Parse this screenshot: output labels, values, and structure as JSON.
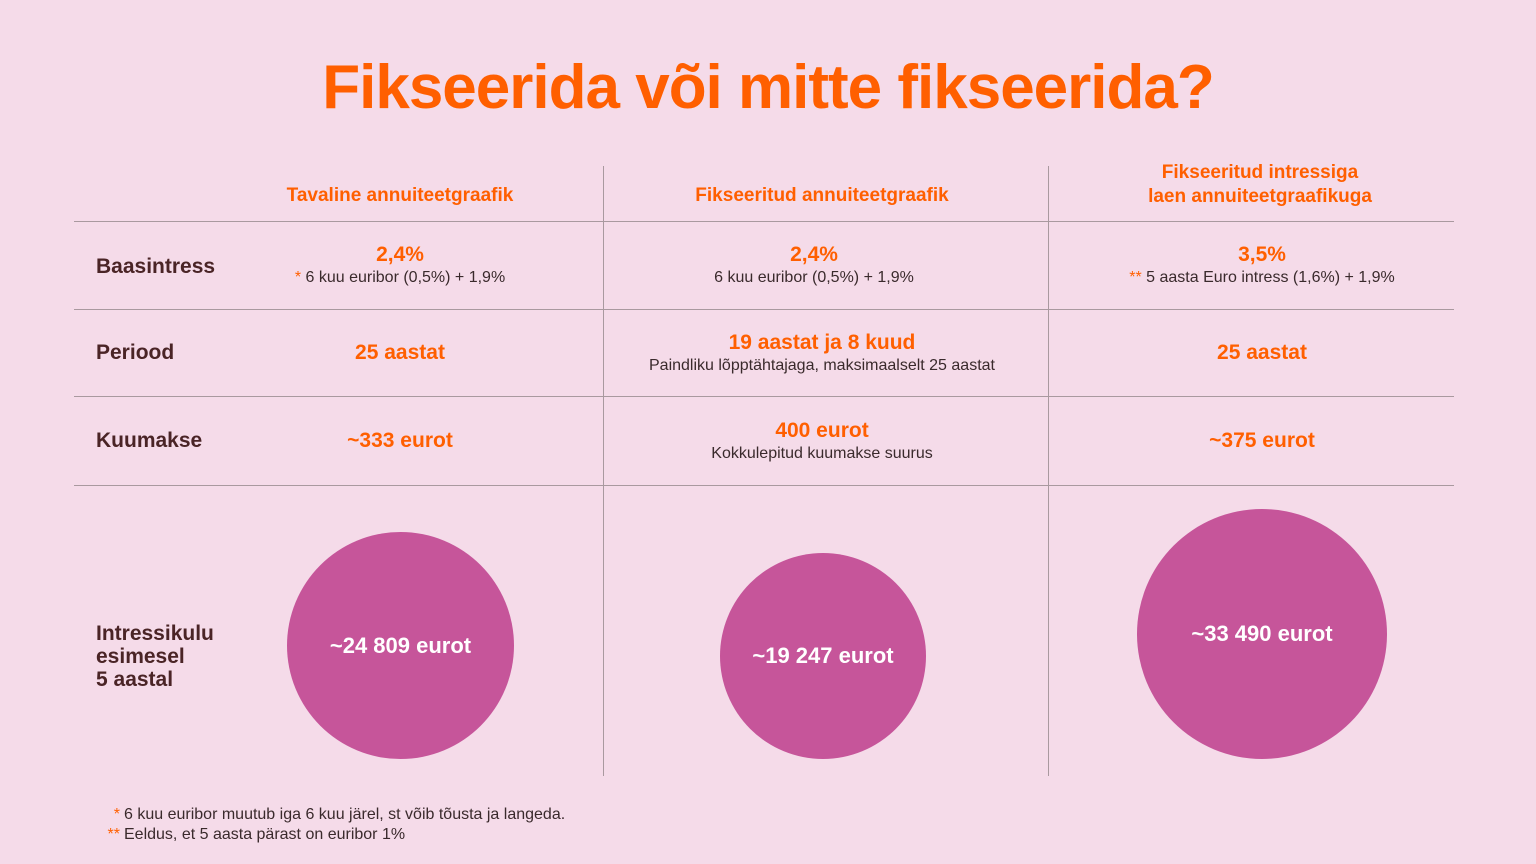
{
  "title": "Fikseerida või mitte fikseerida?",
  "columns": [
    {
      "line1": "Tavaline annuiteetgraafik",
      "line2": ""
    },
    {
      "line1": "Fikseeritud annuiteetgraafik",
      "line2": ""
    },
    {
      "line1": "Fikseeritud intressiga",
      "line2": "laen annuiteetgraafikuga"
    }
  ],
  "rows": {
    "baasintress": {
      "label": "Baasintress",
      "cells": [
        {
          "value": "2,4%",
          "marker": "*",
          "note": "6 kuu euribor (0,5%) + 1,9%"
        },
        {
          "value": "2,4%",
          "marker": "",
          "note": "6 kuu euribor (0,5%) + 1,9%"
        },
        {
          "value": "3,5%",
          "marker": "**",
          "note": "5 aasta Euro intress (1,6%) + 1,9%"
        }
      ]
    },
    "periood": {
      "label": "Periood",
      "cells": [
        {
          "value": "25 aastat",
          "note": ""
        },
        {
          "value": "19 aastat ja 8 kuud",
          "note": "Paindliku lõpptähtajaga, maksimaalselt 25 aastat"
        },
        {
          "value": "25 aastat",
          "note": ""
        }
      ]
    },
    "kuumakse": {
      "label": "Kuumakse",
      "cells": [
        {
          "value": "~333 eurot",
          "note": ""
        },
        {
          "value": "400 eurot",
          "note": "Kokkulepitud kuumakse suurus"
        },
        {
          "value": "~375 eurot",
          "note": ""
        }
      ]
    },
    "intressikulu": {
      "label_lines": [
        "Intressikulu",
        "esimesel",
        "5 aastal"
      ],
      "values": [
        "~24 809 eurot",
        "~19 247 eurot",
        "~33 490 eurot"
      ],
      "amounts": [
        24809,
        19247,
        33490
      ]
    }
  },
  "footnotes": [
    {
      "marker": "*",
      "text": "6 kuu euribor muutub iga 6 kuu järel, st võib tõusta ja langeda."
    },
    {
      "marker": "**",
      "text": "Eeldus, et 5 aasta pärast on euribor 1%"
    }
  ],
  "colors": {
    "accent": "#ff5f00",
    "circle": "#c6559a",
    "background": "#f5dbe9",
    "label": "#4a2426"
  }
}
